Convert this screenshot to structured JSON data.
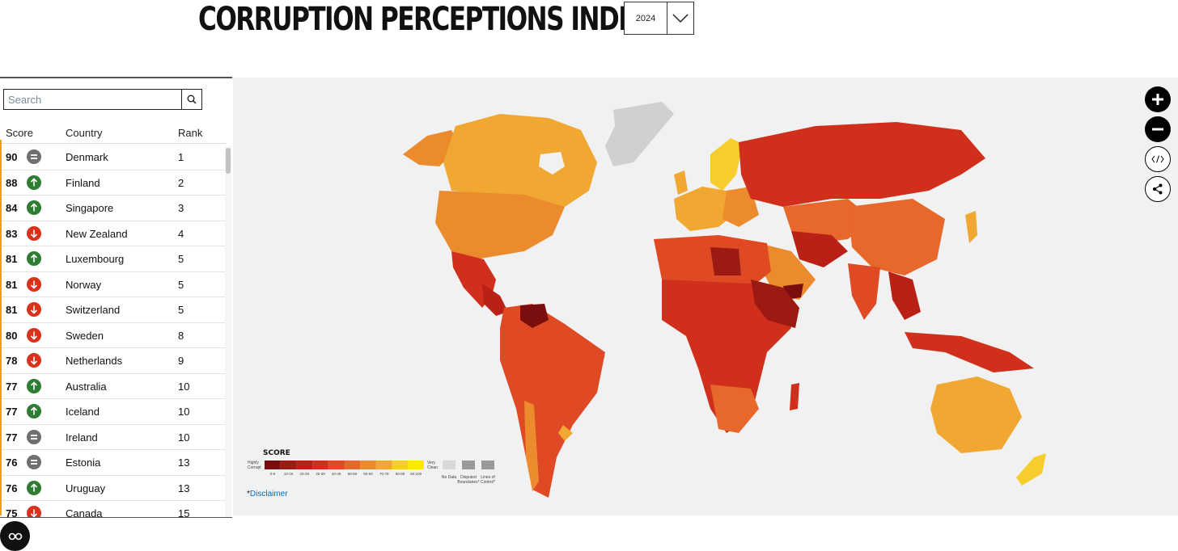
{
  "header": {
    "title": "CORRUPTION PERCEPTIONS INDEX",
    "year": "2024"
  },
  "search": {
    "placeholder": "Search"
  },
  "table": {
    "headers": {
      "score": "Score",
      "country": "Country",
      "rank": "Rank"
    },
    "rows": [
      {
        "score": "90",
        "trend": "same",
        "country": "Denmark",
        "rank": "1"
      },
      {
        "score": "88",
        "trend": "up",
        "country": "Finland",
        "rank": "2"
      },
      {
        "score": "84",
        "trend": "up",
        "country": "Singapore",
        "rank": "3"
      },
      {
        "score": "83",
        "trend": "down",
        "country": "New Zealand",
        "rank": "4"
      },
      {
        "score": "81",
        "trend": "up",
        "country": "Luxembourg",
        "rank": "5"
      },
      {
        "score": "81",
        "trend": "down",
        "country": "Norway",
        "rank": "5"
      },
      {
        "score": "81",
        "trend": "down",
        "country": "Switzerland",
        "rank": "5"
      },
      {
        "score": "80",
        "trend": "down",
        "country": "Sweden",
        "rank": "8"
      },
      {
        "score": "78",
        "trend": "down",
        "country": "Netherlands",
        "rank": "9"
      },
      {
        "score": "77",
        "trend": "up",
        "country": "Australia",
        "rank": "10"
      },
      {
        "score": "77",
        "trend": "up",
        "country": "Iceland",
        "rank": "10"
      },
      {
        "score": "77",
        "trend": "same",
        "country": "Ireland",
        "rank": "10"
      },
      {
        "score": "76",
        "trend": "same",
        "country": "Estonia",
        "rank": "13"
      },
      {
        "score": "76",
        "trend": "up",
        "country": "Uruguay",
        "rank": "13"
      },
      {
        "score": "75",
        "trend": "down",
        "country": "Canada",
        "rank": "15"
      }
    ]
  },
  "legend": {
    "title": "SCORE",
    "low_label": "Highly Corrupt",
    "high_label": "Very Clean",
    "bins": [
      "0-9",
      "10-19",
      "20-29",
      "30-39",
      "40-49",
      "50-59",
      "60-69",
      "70-79",
      "80-89",
      "90-100"
    ],
    "bin_colors": [
      "#7a0d0d",
      "#9c1a12",
      "#b92016",
      "#d02f1c",
      "#df4a24",
      "#e8672a",
      "#ec8a2e",
      "#f0a832",
      "#f6cd2c",
      "#fde800"
    ],
    "extras": [
      "No Data",
      "Disputed Boundaries*",
      "Lines of Control*"
    ]
  },
  "disclaimer": {
    "star": "*",
    "label": "Disclaimer"
  },
  "map_controls": [
    "zoom-in",
    "zoom-out",
    "embed",
    "share"
  ],
  "colors": {
    "up": "#2e7d32",
    "down": "#d8321b",
    "same": "#6f6f6f",
    "map_bg": "#f1f1f1"
  }
}
